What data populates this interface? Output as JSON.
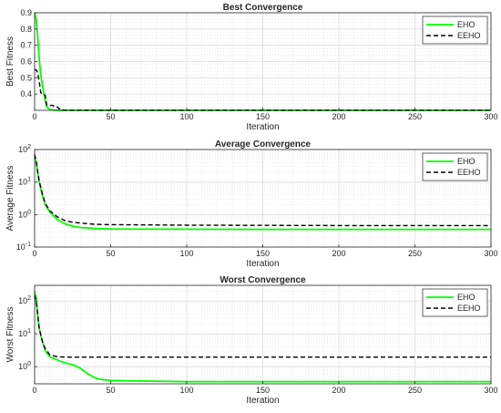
{
  "colors": {
    "eho": "#00ff00",
    "eeho": "#000000",
    "grid": "#dcdcdc",
    "axes": "#262626"
  },
  "chart_data": [
    {
      "type": "line",
      "title": "Best Convergence",
      "xlabel": "Iteration",
      "ylabel": "Best Fitness",
      "xlim": [
        0,
        300
      ],
      "ylim": [
        0.3,
        0.9
      ],
      "yscale": "linear",
      "grid": true,
      "legend_position": "top-right",
      "xticks": [
        "0",
        "50",
        "100",
        "150",
        "200",
        "250",
        "300"
      ],
      "yticks": [
        "0.4",
        "0.5",
        "0.6",
        "0.7",
        "0.8",
        "0.9"
      ],
      "series": [
        {
          "name": "EHO",
          "style": "solid",
          "color": "#00ff00",
          "x": [
            0,
            1,
            2,
            3,
            4,
            5,
            6,
            7,
            8,
            10,
            13,
            300
          ],
          "y": [
            0.9,
            0.86,
            0.76,
            0.62,
            0.52,
            0.46,
            0.41,
            0.36,
            0.32,
            0.305,
            0.3,
            0.3
          ]
        },
        {
          "name": "EEHO",
          "style": "dashed",
          "color": "#000000",
          "x": [
            0,
            1,
            2,
            3,
            4,
            5,
            6,
            7,
            8,
            9,
            10,
            12,
            13,
            15,
            16,
            18,
            19,
            20,
            300
          ],
          "y": [
            0.55,
            0.55,
            0.53,
            0.48,
            0.41,
            0.4,
            0.4,
            0.39,
            0.33,
            0.33,
            0.33,
            0.33,
            0.32,
            0.32,
            0.31,
            0.31,
            0.3,
            0.3,
            0.3
          ]
        }
      ]
    },
    {
      "type": "line",
      "title": "Average Convergence",
      "xlabel": "Iteration",
      "ylabel": "Average Fitness",
      "xlim": [
        0,
        300
      ],
      "ylim": [
        0.1,
        100
      ],
      "yscale": "log",
      "grid": true,
      "legend_position": "top-right",
      "xticks": [
        "0",
        "50",
        "100",
        "150",
        "200",
        "250",
        "300"
      ],
      "series": [
        {
          "name": "EHO",
          "style": "solid",
          "color": "#00ff00",
          "x": [
            0,
            1,
            2,
            3,
            5,
            7,
            10,
            15,
            20,
            25,
            30,
            40,
            50,
            100,
            150,
            200,
            250,
            300
          ],
          "y": [
            60,
            40,
            20,
            10,
            4,
            2,
            1.2,
            0.7,
            0.52,
            0.44,
            0.4,
            0.37,
            0.36,
            0.355,
            0.35,
            0.35,
            0.35,
            0.35
          ]
        },
        {
          "name": "EEHO",
          "style": "dashed",
          "color": "#000000",
          "x": [
            0,
            1,
            2,
            3,
            5,
            7,
            10,
            15,
            20,
            25,
            30,
            40,
            50,
            100,
            150,
            200,
            250,
            300
          ],
          "y": [
            70,
            45,
            22,
            11,
            4.5,
            2.2,
            1.3,
            0.85,
            0.65,
            0.58,
            0.55,
            0.5,
            0.49,
            0.47,
            0.465,
            0.46,
            0.46,
            0.46
          ]
        }
      ]
    },
    {
      "type": "line",
      "title": "Worst Convergence",
      "xlabel": "Iteration",
      "ylabel": "Worst Fitness",
      "xlim": [
        0,
        300
      ],
      "ylim": [
        0.3,
        300
      ],
      "yscale": "log",
      "grid": true,
      "legend_position": "top-right",
      "xticks": [
        "0",
        "50",
        "100",
        "150",
        "200",
        "250",
        "300"
      ],
      "series": [
        {
          "name": "EHO",
          "style": "solid",
          "color": "#00ff00",
          "x": [
            0,
            1,
            2,
            3,
            5,
            7,
            10,
            15,
            20,
            25,
            30,
            35,
            40,
            45,
            50,
            60,
            80,
            100,
            150,
            200,
            250,
            300
          ],
          "y": [
            200,
            120,
            40,
            15,
            6,
            3,
            2,
            1.6,
            1.3,
            1.15,
            0.9,
            0.6,
            0.45,
            0.4,
            0.38,
            0.37,
            0.36,
            0.35,
            0.35,
            0.35,
            0.35,
            0.35
          ]
        },
        {
          "name": "EEHO",
          "style": "dashed",
          "color": "#000000",
          "x": [
            0,
            1,
            2,
            3,
            5,
            7,
            10,
            15,
            20,
            300
          ],
          "y": [
            150,
            100,
            40,
            15,
            6,
            3.5,
            2.3,
            2.0,
            1.95,
            1.95
          ]
        }
      ]
    }
  ]
}
